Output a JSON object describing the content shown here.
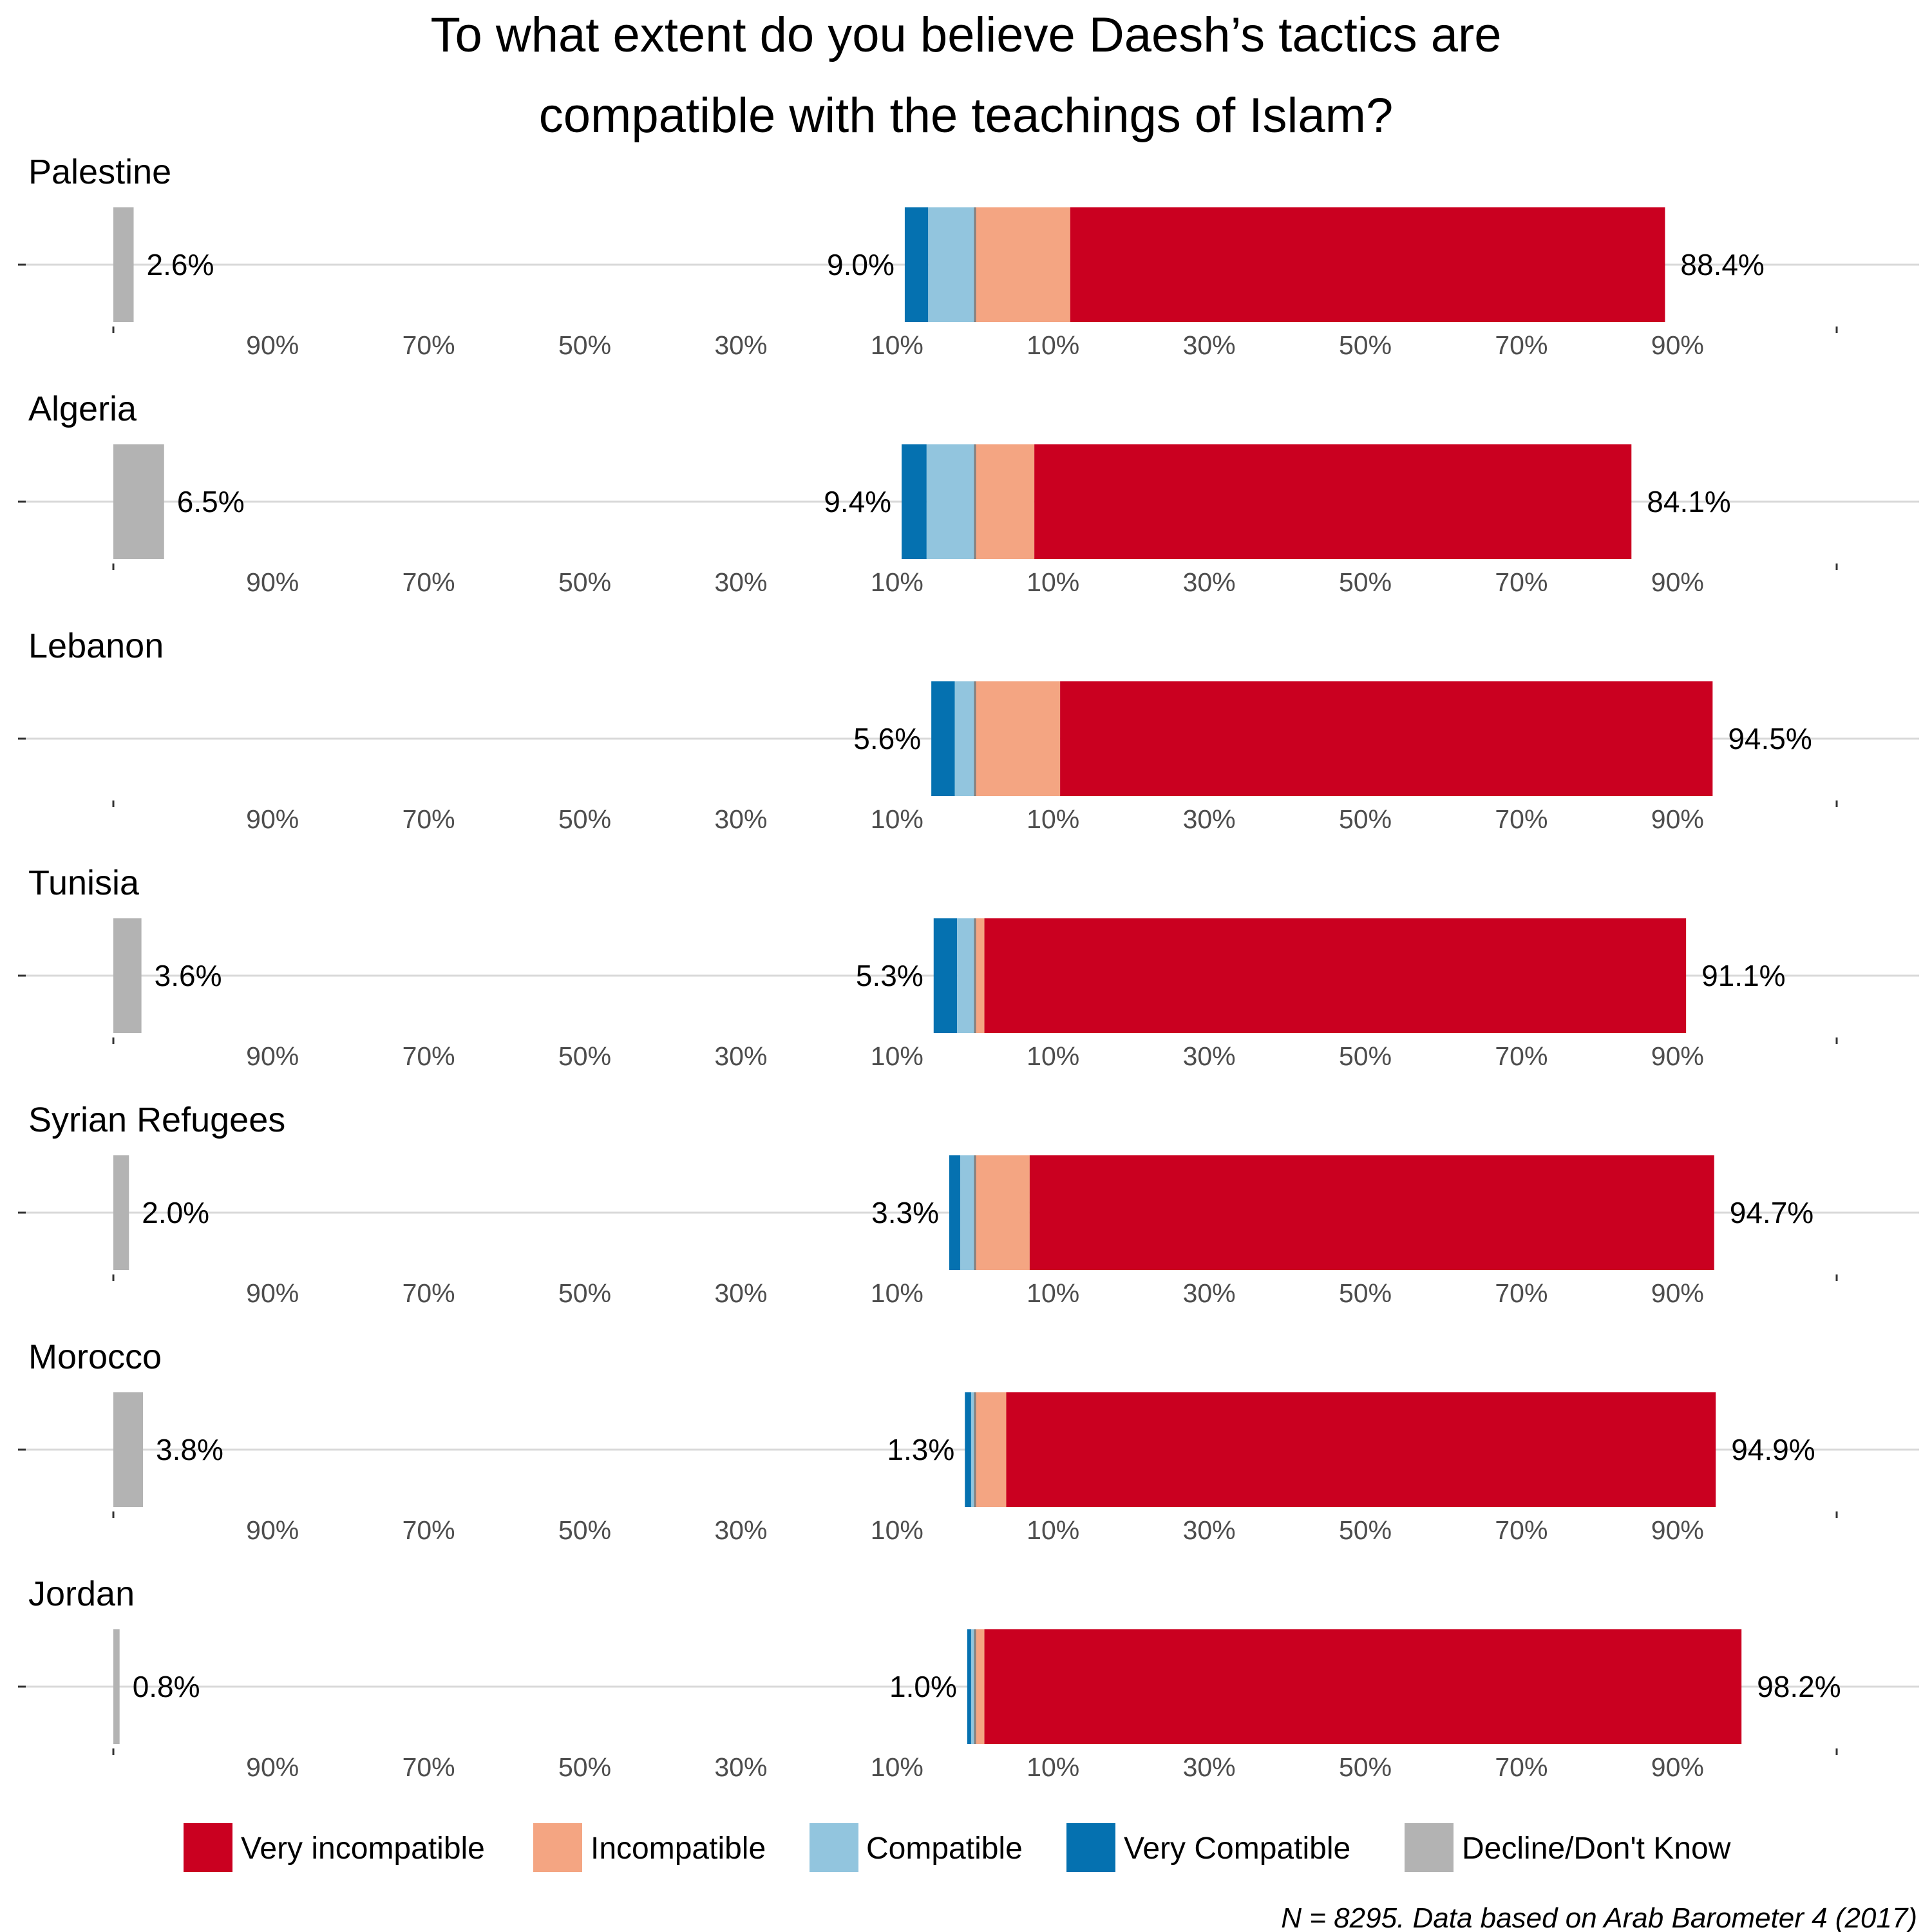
{
  "chart_data": {
    "type": "bar",
    "orientation": "horizontal",
    "stacking": "diverging",
    "title": "To what extent do you believe Daesh’s tactics are compatible with the teachings of Islam?",
    "title_lines": [
      "To what extent do you believe Daesh’s tactics are",
      "compatible with the teachings of Islam?"
    ],
    "xlim": [
      -100,
      100
    ],
    "tick_values": [
      -90,
      -70,
      -50,
      -30,
      -10,
      10,
      30,
      50,
      70,
      90
    ],
    "tick_labels": [
      "90%",
      "70%",
      "50%",
      "30%",
      "10%",
      "10%",
      "30%",
      "50%",
      "70%",
      "90%"
    ],
    "dk_xlim": [
      0,
      100
    ],
    "series": [
      {
        "name": "Very incompatible",
        "color": "#ca0020",
        "side": "right"
      },
      {
        "name": "Incompatible",
        "color": "#f4a582",
        "side": "right"
      },
      {
        "name": "Compatible",
        "color": "#92c5de",
        "side": "left"
      },
      {
        "name": "Very Compatible",
        "color": "#0571b0",
        "side": "left"
      },
      {
        "name": "Decline/Don't Know",
        "color": "#b3b3b3",
        "side": "separate"
      }
    ],
    "panels": [
      {
        "country": "Palestine",
        "very_compatible": 3.0,
        "compatible": 6.0,
        "incompatible": 12.2,
        "very_incompatible": 76.2,
        "dk": 2.6,
        "compatible_total_label": "9.0%",
        "incompatible_total_label": "88.4%",
        "dk_label": "2.6%"
      },
      {
        "country": "Algeria",
        "very_compatible": 3.2,
        "compatible": 6.2,
        "incompatible": 7.6,
        "very_incompatible": 76.5,
        "dk": 6.5,
        "compatible_total_label": "9.4%",
        "incompatible_total_label": "84.1%",
        "dk_label": "6.5%"
      },
      {
        "country": "Lebanon",
        "very_compatible": 3.0,
        "compatible": 2.6,
        "incompatible": 10.9,
        "very_incompatible": 83.6,
        "dk": 0,
        "compatible_total_label": "5.6%",
        "incompatible_total_label": "94.5%",
        "dk_label": ""
      },
      {
        "country": "Tunisia",
        "very_compatible": 3.0,
        "compatible": 2.3,
        "incompatible": 1.2,
        "very_incompatible": 89.9,
        "dk": 3.6,
        "compatible_total_label": "5.3%",
        "incompatible_total_label": "91.1%",
        "dk_label": "3.6%"
      },
      {
        "country": "Syrian Refugees",
        "very_compatible": 1.4,
        "compatible": 1.9,
        "incompatible": 7.0,
        "very_incompatible": 87.7,
        "dk": 2.0,
        "compatible_total_label": "3.3%",
        "incompatible_total_label": "94.7%",
        "dk_label": "2.0%"
      },
      {
        "country": "Morocco",
        "very_compatible": 0.8,
        "compatible": 0.5,
        "incompatible": 4.0,
        "very_incompatible": 90.9,
        "dk": 3.8,
        "compatible_total_label": "1.3%",
        "incompatible_total_label": "94.9%",
        "dk_label": "3.8%"
      },
      {
        "country": "Jordan",
        "very_compatible": 0.5,
        "compatible": 0.5,
        "incompatible": 1.2,
        "very_incompatible": 97.0,
        "dk": 0.8,
        "compatible_total_label": "1.0%",
        "incompatible_total_label": "98.2%",
        "dk_label": "0.8%"
      }
    ],
    "legend": [
      "Very incompatible",
      "Incompatible",
      "Compatible",
      "Very Compatible",
      "Decline/Don't Know"
    ],
    "legend_position": "bottom",
    "caption": "N = 8295. Data based on Arab Barometer 4 (2017)",
    "grid": "horizontal only"
  }
}
